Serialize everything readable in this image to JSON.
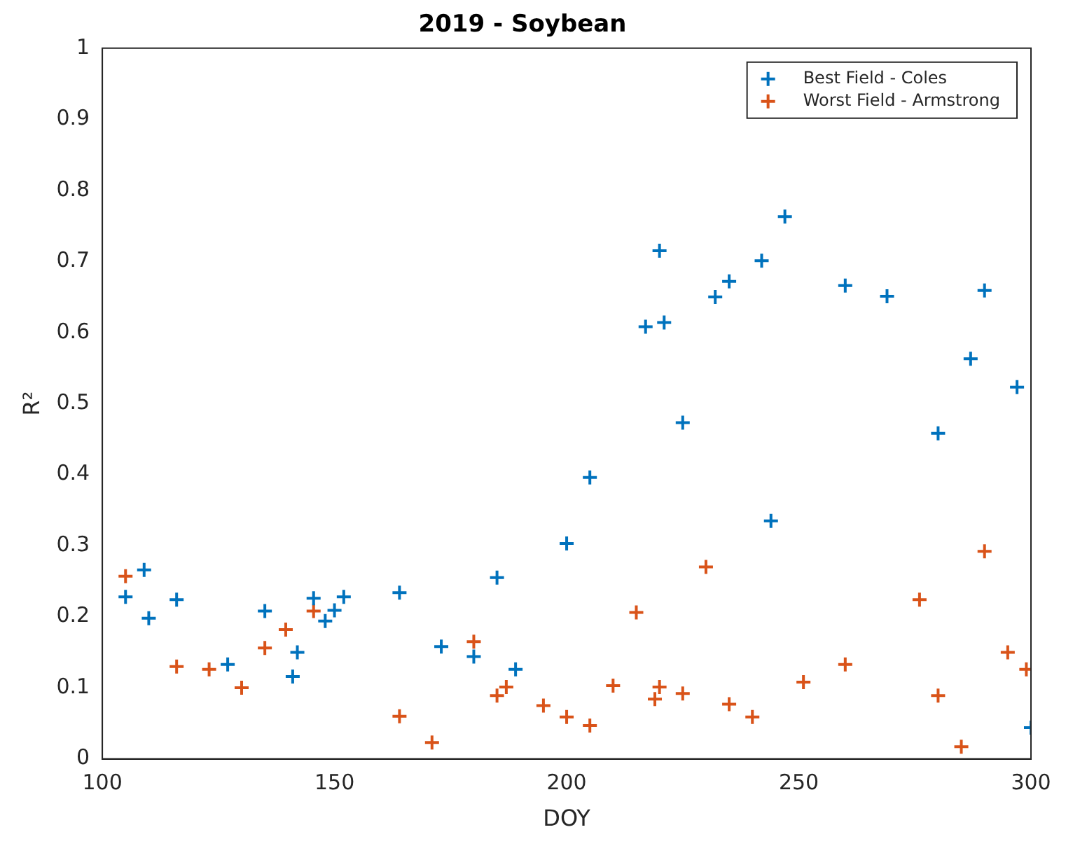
{
  "chart_data": {
    "type": "scatter",
    "title": "2019 - Soybean",
    "xlabel": "DOY",
    "ylabel": "R²",
    "xlim": [
      100,
      300
    ],
    "xticks": [
      100,
      150,
      200,
      250,
      300
    ],
    "ylim": [
      0,
      1
    ],
    "yticks": [
      0,
      0.1,
      0.2,
      0.3,
      0.4,
      0.5,
      0.6,
      0.7,
      0.8,
      0.9,
      1
    ],
    "grid": false,
    "legend": "top right",
    "marker": "cross",
    "series": [
      {
        "name": "Best Field - Coles",
        "color": "#0072bd",
        "x": [
          105,
          109,
          110,
          116,
          127,
          135,
          141,
          142,
          145.5,
          148,
          150,
          152,
          164,
          173,
          180,
          185,
          189,
          200,
          205,
          217,
          220,
          221,
          225,
          232,
          235,
          242,
          244,
          247,
          260,
          269,
          280,
          287,
          290,
          297,
          300
        ],
        "values": [
          0.228,
          0.266,
          0.198,
          0.224,
          0.133,
          0.208,
          0.116,
          0.15,
          0.226,
          0.194,
          0.209,
          0.228,
          0.234,
          0.158,
          0.144,
          0.255,
          0.126,
          0.303,
          0.396,
          0.608,
          0.715,
          0.614,
          0.473,
          0.65,
          0.672,
          0.701,
          0.335,
          0.763,
          0.666,
          0.651,
          0.458,
          0.563,
          0.659,
          0.523,
          0.044
        ]
      },
      {
        "name": "Worst Field - Armstrong",
        "color": "#d95319",
        "x": [
          105,
          116,
          123,
          130,
          135,
          139.5,
          145.5,
          164,
          171,
          180,
          185,
          187,
          195,
          200,
          205,
          210,
          215,
          219,
          220,
          225,
          230,
          235,
          240,
          251,
          260,
          276,
          280,
          285,
          290,
          295,
          299
        ],
        "values": [
          0.257,
          0.13,
          0.126,
          0.1,
          0.156,
          0.182,
          0.208,
          0.06,
          0.023,
          0.165,
          0.089,
          0.101,
          0.075,
          0.059,
          0.047,
          0.103,
          0.206,
          0.084,
          0.101,
          0.092,
          0.27,
          0.077,
          0.059,
          0.108,
          0.133,
          0.224,
          0.089,
          0.017,
          0.292,
          0.15,
          0.126
        ]
      }
    ]
  }
}
